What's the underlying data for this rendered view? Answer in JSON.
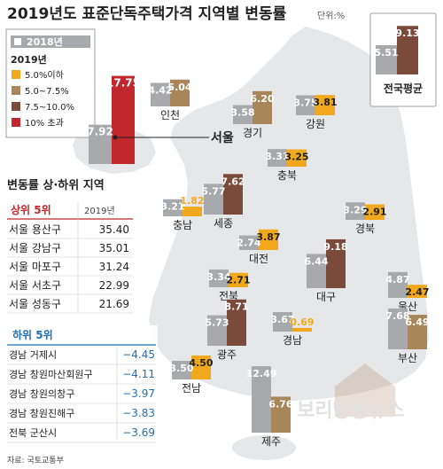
{
  "title": "2019년도 표준단독주택가격 지역별 변동률",
  "unit": "단위:%",
  "source": "자료: 국토교통부",
  "watermark": "보리방송뉴스",
  "legend": {
    "year_2018": "2018년",
    "year_2019": "2019년",
    "items": [
      {
        "label": "5.0%이하",
        "color": "#f2a81d"
      },
      {
        "label": "5.0~7.5%",
        "color": "#a8865a"
      },
      {
        "label": "7.5~10.0%",
        "color": "#7a4a3a"
      },
      {
        "label": "10% 초과",
        "color": "#c1272d"
      }
    ],
    "color_2018": "#a7a9ac"
  },
  "national": {
    "label": "전국평균",
    "v2018": "5.51",
    "v2019": "9.13"
  },
  "chart_data": {
    "type": "bar",
    "unit": "%",
    "categories": [
      "서울",
      "인천",
      "경기",
      "강원",
      "충북",
      "세종",
      "충남",
      "대전",
      "대구",
      "경북",
      "전북",
      "울산",
      "광주",
      "경남",
      "부산",
      "전남",
      "제주"
    ],
    "series": [
      {
        "name": "2018년",
        "values": [
          7.92,
          4.42,
          3.58,
          3.75,
          3.31,
          5.77,
          3.21,
          2.74,
          6.44,
          3.29,
          3.34,
          4.87,
          5.73,
          3.67,
          7.68,
          3.5,
          12.49
        ]
      },
      {
        "name": "2019년",
        "values": [
          17.75,
          5.04,
          6.2,
          3.81,
          3.25,
          7.62,
          1.82,
          3.87,
          9.18,
          2.91,
          2.71,
          2.47,
          8.71,
          0.69,
          6.49,
          4.5,
          6.76
        ]
      }
    ],
    "labels_2018": [
      "7.92",
      "4.42",
      "3.58",
      "3.75",
      "3.31",
      "5.77",
      "3.21",
      "2.74",
      "6.44",
      "3.29",
      "3.34",
      "4.87",
      "5.73",
      "3.67",
      "7.68",
      "3.50",
      "12.49"
    ],
    "labels_2019": [
      "17.75",
      "5.04",
      "6.20",
      "3.81",
      "3.25",
      "7.62",
      "1.82",
      "3.87",
      "9.18",
      "2.91",
      "2.71",
      "2.47",
      "8.71",
      "0.69",
      "6.49",
      "4.50",
      "6.76"
    ]
  },
  "ranking": {
    "title": "변동률 상·하위 지역",
    "top_header": "상위 5위",
    "year_header": "2019년",
    "top": [
      {
        "name": "서울 용산구",
        "value": "35.40"
      },
      {
        "name": "서울 강남구",
        "value": "35.01"
      },
      {
        "name": "서울 마포구",
        "value": "31.24"
      },
      {
        "name": "서울 서초구",
        "value": "22.99"
      },
      {
        "name": "서울 성동구",
        "value": "21.69"
      }
    ],
    "bottom_header": "하위 5위",
    "bottom": [
      {
        "name": "경남 거제시",
        "value": "−4.45"
      },
      {
        "name": "경남 창원마산회원구",
        "value": "−4.11"
      },
      {
        "name": "경남 창원의창구",
        "value": "−3.97"
      },
      {
        "name": "경남 창원진해구",
        "value": "−3.83"
      },
      {
        "name": "전북 군산시",
        "value": "−3.69"
      }
    ]
  }
}
